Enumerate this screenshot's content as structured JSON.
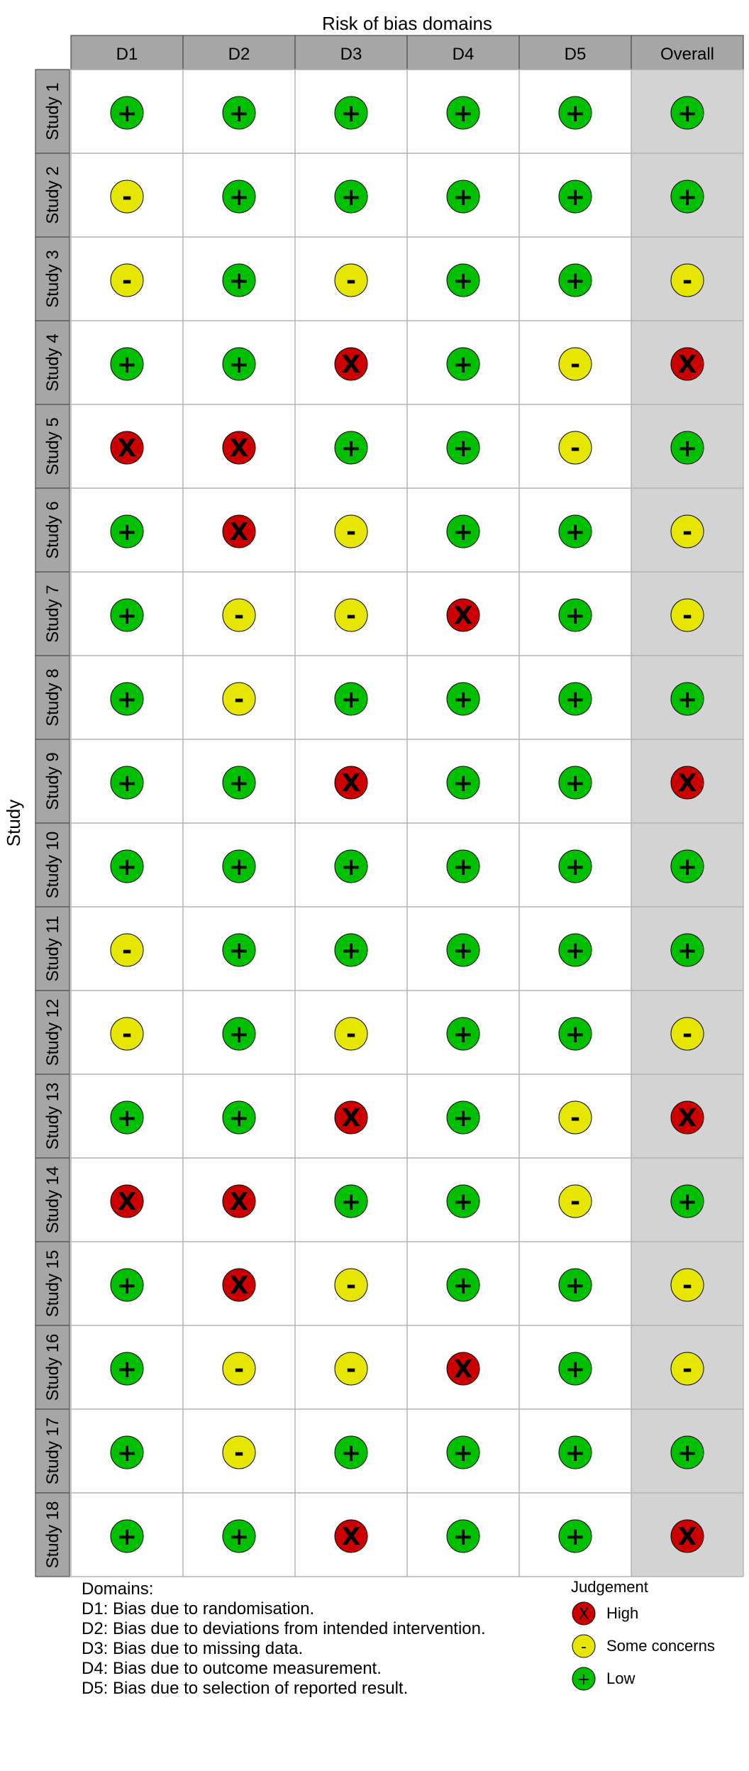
{
  "chart_data": {
    "type": "table",
    "title": "Risk of bias domains",
    "ylabel": "Study",
    "columns": [
      "D1",
      "D2",
      "D3",
      "D4",
      "D5",
      "Overall"
    ],
    "studies": [
      "Study 1",
      "Study 2",
      "Study 3",
      "Study 4",
      "Study 5",
      "Study 6",
      "Study 7",
      "Study 8",
      "Study 9",
      "Study 10",
      "Study 11",
      "Study 12",
      "Study 13",
      "Study 14",
      "Study 15",
      "Study 16",
      "Study 17",
      "Study 18"
    ],
    "judgements": [
      [
        "Low",
        "Low",
        "Low",
        "Low",
        "Low",
        "Low"
      ],
      [
        "Some concerns",
        "Low",
        "Low",
        "Low",
        "Low",
        "Low"
      ],
      [
        "Some concerns",
        "Low",
        "Some concerns",
        "Low",
        "Low",
        "Some concerns"
      ],
      [
        "Low",
        "Low",
        "High",
        "Low",
        "Some concerns",
        "High"
      ],
      [
        "High",
        "High",
        "Low",
        "Low",
        "Some concerns",
        "Low"
      ],
      [
        "Low",
        "High",
        "Some concerns",
        "Low",
        "Low",
        "Some concerns"
      ],
      [
        "Low",
        "Some concerns",
        "Some concerns",
        "High",
        "Low",
        "Some concerns"
      ],
      [
        "Low",
        "Some concerns",
        "Low",
        "Low",
        "Low",
        "Low"
      ],
      [
        "Low",
        "Low",
        "High",
        "Low",
        "Low",
        "High"
      ],
      [
        "Low",
        "Low",
        "Low",
        "Low",
        "Low",
        "Low"
      ],
      [
        "Some concerns",
        "Low",
        "Low",
        "Low",
        "Low",
        "Low"
      ],
      [
        "Some concerns",
        "Low",
        "Some concerns",
        "Low",
        "Low",
        "Some concerns"
      ],
      [
        "Low",
        "Low",
        "High",
        "Low",
        "Some concerns",
        "High"
      ],
      [
        "High",
        "High",
        "Low",
        "Low",
        "Some concerns",
        "Low"
      ],
      [
        "Low",
        "High",
        "Some concerns",
        "Low",
        "Low",
        "Some concerns"
      ],
      [
        "Low",
        "Some concerns",
        "Some concerns",
        "High",
        "Low",
        "Some concerns"
      ],
      [
        "Low",
        "Some concerns",
        "Low",
        "Low",
        "Low",
        "Low"
      ],
      [
        "Low",
        "Low",
        "High",
        "Low",
        "Low",
        "High"
      ]
    ],
    "levels": {
      "High": {
        "symbol": "X",
        "color": "#cc0000"
      },
      "Some concerns": {
        "symbol": "-",
        "color": "#e6e600"
      },
      "Low": {
        "symbol": "+",
        "color": "#00c000"
      }
    },
    "domain_legend_title": "Domains:",
    "domain_legend": [
      "D1: Bias due to randomisation.",
      "D2: Bias due to deviations from intended intervention.",
      "D3: Bias due to missing data.",
      "D4: Bias due to outcome measurement.",
      "D5: Bias due to selection of reported result."
    ],
    "judgement_legend_title": "Judgement",
    "judgement_legend": [
      "High",
      "Some concerns",
      "Low"
    ]
  }
}
